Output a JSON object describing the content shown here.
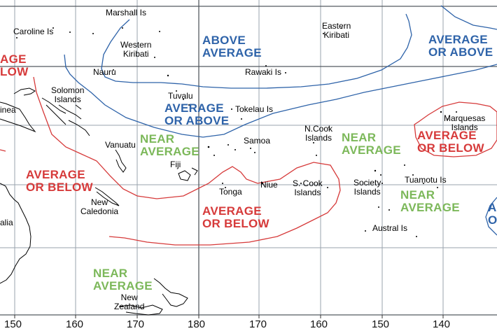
{
  "map": {
    "colors": {
      "above": "#2e63a9",
      "near": "#7cb85a",
      "below": "#d63a3a",
      "grid": "#9aa3ad",
      "coast": "#000000"
    },
    "longitude_labels": [
      "150",
      "160",
      "170",
      "180",
      "170",
      "160",
      "150",
      "140"
    ],
    "places": {
      "marshall": "Marshall Is",
      "caroline": "Caroline Is",
      "western_kiribati": [
        "Western",
        "Kiribati"
      ],
      "eastern_kiribati": [
        "Eastern",
        "Kiribati"
      ],
      "nauru": "Nauru",
      "rawaki": "Rawaki Is",
      "solomon": [
        "Solomon",
        "Islands"
      ],
      "tuvalu": "Tuvalu",
      "tokelau": "Tokelau Is",
      "png": "inea",
      "marquesas": [
        "Marquesas",
        "Islands"
      ],
      "vanuatu": "Vanuatu",
      "fiji": "Fiji",
      "samoa": "Samoa",
      "n_cook": [
        "N.Cook",
        "Islands"
      ],
      "tonga": "Tonga",
      "niue": "Niue",
      "s_cook": [
        "S. Cook",
        "Islands"
      ],
      "society": [
        "Society",
        "Islands"
      ],
      "tuamotu": "Tuamotu Is",
      "new_caledonia": [
        "New",
        "Caledonia"
      ],
      "australia": "alia",
      "austral": "Austral Is",
      "new_zealand": [
        "New",
        "Zealand"
      ]
    },
    "zones": {
      "above_average_north": [
        "ABOVE",
        "AVERAGE"
      ],
      "average_or_above_ne": [
        "AVERAGE",
        "OR ABOVE"
      ],
      "average_or_above_center": [
        "AVERAGE",
        "OR ABOVE"
      ],
      "average_or_below_nw": [
        "AGE",
        "LOW"
      ],
      "near_average_center": [
        "NEAR",
        "AVERAGE"
      ],
      "near_average_east": [
        "NEAR",
        "AVERAGE"
      ],
      "near_average_southeast": [
        "NEAR",
        "AVERAGE"
      ],
      "near_average_south": [
        "NEAR",
        "AVERAGE"
      ],
      "average_or_below_west": [
        "AVERAGE",
        "OR BELOW"
      ],
      "average_or_below_south": [
        "AVERAGE",
        "OR BELOW"
      ],
      "average_or_below_east": [
        "AVERAGE",
        "OR BELOW"
      ],
      "right_edge_above": [
        "A",
        "O"
      ]
    }
  }
}
